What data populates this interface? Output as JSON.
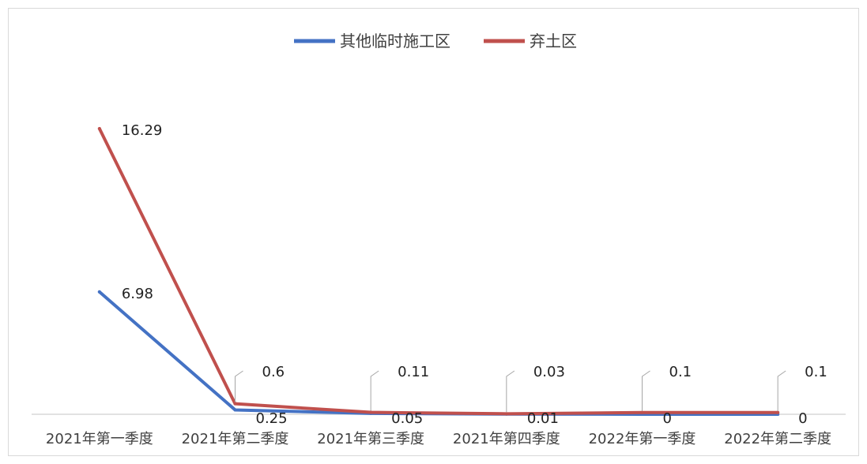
{
  "chart_data": {
    "type": "line",
    "categories": [
      "2021年第一季度",
      "2021年第二季度",
      "2021年第三季度",
      "2021年第四季度",
      "2022年第一季度",
      "2022年第二季度"
    ],
    "series": [
      {
        "name": "其他临时施工区",
        "color": "#4472c4",
        "values": [
          6.98,
          0.25,
          0.05,
          0.01,
          0,
          0
        ]
      },
      {
        "name": "弃土区",
        "color": "#c0504d",
        "values": [
          16.29,
          0.6,
          0.11,
          0.03,
          0.1,
          0.1
        ]
      }
    ],
    "ylim": [
      0,
      18
    ],
    "legend": "top-center",
    "grid": false,
    "data_labels": true
  }
}
